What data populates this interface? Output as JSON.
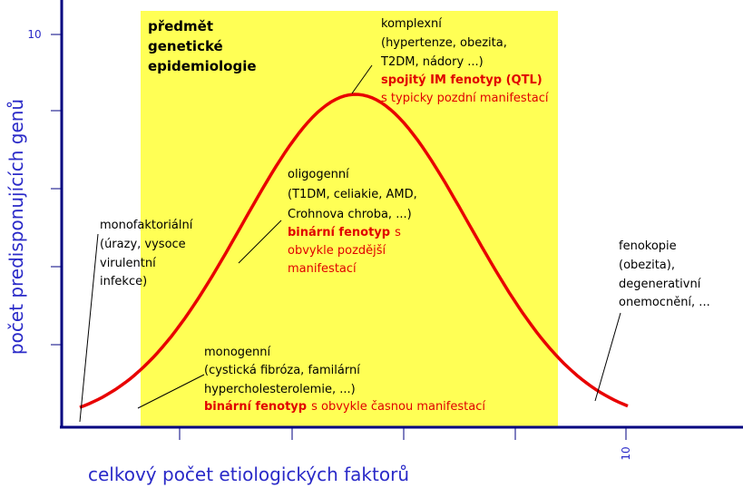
{
  "axes": {
    "y_label": "počet predisponujících genů",
    "x_label": "celkový počet etiologických faktorů",
    "y_tick": "10",
    "x_tick": "10"
  },
  "region_title": [
    "předmět",
    "genetické",
    "epidemiologie"
  ],
  "complex": {
    "lines": [
      "komplexní",
      "(hypertenze, obezita,",
      "T2DM, nádory ...)"
    ],
    "emphasis": "spojitý IM fenotyp (QTL)",
    "note": "s typicky pozdní manifestací"
  },
  "oligogenic": {
    "lines": [
      "oligogenní",
      "(T1DM, celiakie, AMD,",
      "Crohnova chroba, ...)"
    ],
    "emphasis": "binární fenotyp",
    "tail": "s",
    "note": [
      "obvykle pozdější",
      "manifestací"
    ]
  },
  "monofactorial": {
    "lines": [
      "monofaktoriální",
      "(úrazy, vysoce",
      "virulentní",
      "infekce)"
    ]
  },
  "phenocopy": {
    "lines": [
      "fenokopie",
      "(obezita),",
      "degenerativní",
      "onemocnění, ..."
    ]
  },
  "monogenic": {
    "lines": [
      "monogenní",
      "(cystická fibróza, familární",
      "hypercholesterolemie, ...)"
    ],
    "emphasis": "binární fenotyp",
    "tail": "s obvykle časnou manifestací"
  }
}
